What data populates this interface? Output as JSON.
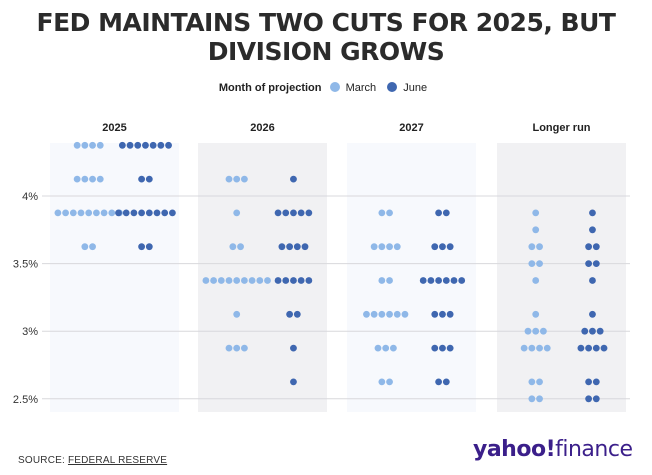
{
  "title_lines": [
    "FED MAINTAINS TWO CUTS FOR 2025, BUT",
    "DIVISION GROWS"
  ],
  "legend": {
    "title": "Month of projection",
    "items": [
      {
        "label": "March",
        "color": "#8fb8e8"
      },
      {
        "label": "June",
        "color": "#3f67b0"
      }
    ]
  },
  "source": {
    "label": "SOURCE:",
    "link_text": "FEDERAL RESERVE"
  },
  "logo": {
    "text_bold": "yahoo!",
    "text_regular": "finance"
  },
  "chart_data": {
    "type": "dot plot",
    "y_axis": {
      "ticks": [
        "4%",
        "3.5%",
        "3%",
        "2.5%"
      ],
      "tick_values": [
        4.0,
        3.5,
        3.0,
        2.5
      ],
      "range": [
        2.375,
        4.375
      ]
    },
    "grid": true,
    "colors": {
      "March": "#8fb8e8",
      "June": "#3f67b0"
    },
    "panels": [
      {
        "label": "2025",
        "March": [
          {
            "rate": 4.375,
            "count": 4
          },
          {
            "rate": 4.125,
            "count": 4
          },
          {
            "rate": 3.875,
            "count": 9
          },
          {
            "rate": 3.625,
            "count": 2
          }
        ],
        "June": [
          {
            "rate": 4.375,
            "count": 7
          },
          {
            "rate": 4.125,
            "count": 2
          },
          {
            "rate": 3.875,
            "count": 8
          },
          {
            "rate": 3.625,
            "count": 2
          }
        ]
      },
      {
        "label": "2026",
        "March": [
          {
            "rate": 4.125,
            "count": 3
          },
          {
            "rate": 3.875,
            "count": 1
          },
          {
            "rate": 3.625,
            "count": 2
          },
          {
            "rate": 3.375,
            "count": 9
          },
          {
            "rate": 3.125,
            "count": 1
          },
          {
            "rate": 2.875,
            "count": 3
          }
        ],
        "June": [
          {
            "rate": 4.125,
            "count": 1
          },
          {
            "rate": 3.875,
            "count": 5
          },
          {
            "rate": 3.625,
            "count": 4
          },
          {
            "rate": 3.375,
            "count": 5
          },
          {
            "rate": 3.125,
            "count": 2
          },
          {
            "rate": 2.875,
            "count": 1
          },
          {
            "rate": 2.625,
            "count": 1
          }
        ]
      },
      {
        "label": "2027",
        "March": [
          {
            "rate": 3.875,
            "count": 2
          },
          {
            "rate": 3.625,
            "count": 4
          },
          {
            "rate": 3.375,
            "count": 2
          },
          {
            "rate": 3.125,
            "count": 6
          },
          {
            "rate": 2.875,
            "count": 3
          },
          {
            "rate": 2.625,
            "count": 2
          }
        ],
        "June": [
          {
            "rate": 3.875,
            "count": 2
          },
          {
            "rate": 3.625,
            "count": 3
          },
          {
            "rate": 3.375,
            "count": 6
          },
          {
            "rate": 3.125,
            "count": 3
          },
          {
            "rate": 2.875,
            "count": 3
          },
          {
            "rate": 2.625,
            "count": 2
          }
        ]
      },
      {
        "label": "Longer run",
        "March": [
          {
            "rate": 3.875,
            "count": 1
          },
          {
            "rate": 3.75,
            "count": 1
          },
          {
            "rate": 3.625,
            "count": 2
          },
          {
            "rate": 3.5,
            "count": 2
          },
          {
            "rate": 3.375,
            "count": 1
          },
          {
            "rate": 3.125,
            "count": 1
          },
          {
            "rate": 3.0,
            "count": 3
          },
          {
            "rate": 2.875,
            "count": 4
          },
          {
            "rate": 2.625,
            "count": 2
          },
          {
            "rate": 2.5,
            "count": 2
          }
        ],
        "June": [
          {
            "rate": 3.875,
            "count": 1
          },
          {
            "rate": 3.75,
            "count": 1
          },
          {
            "rate": 3.625,
            "count": 2
          },
          {
            "rate": 3.5,
            "count": 2
          },
          {
            "rate": 3.375,
            "count": 1
          },
          {
            "rate": 3.125,
            "count": 1
          },
          {
            "rate": 3.0,
            "count": 3
          },
          {
            "rate": 2.875,
            "count": 4
          },
          {
            "rate": 2.625,
            "count": 2
          },
          {
            "rate": 2.5,
            "count": 2
          }
        ]
      }
    ]
  }
}
